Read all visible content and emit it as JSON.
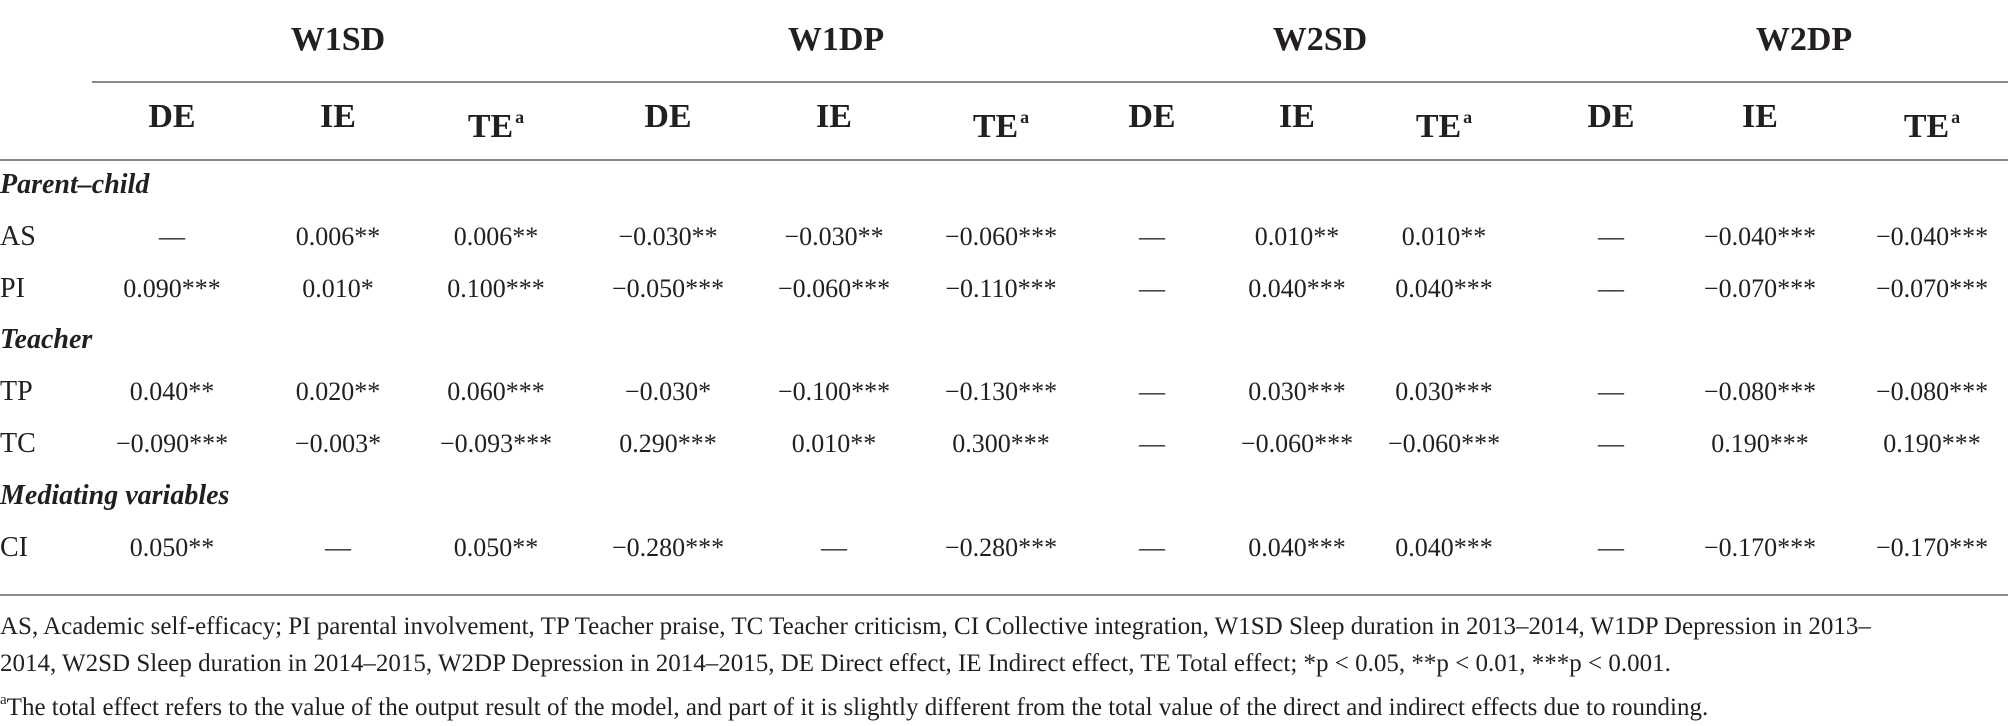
{
  "groups": [
    "W1SD",
    "W1DP",
    "W2SD",
    "W2DP"
  ],
  "subheaders": [
    "DE",
    "IE",
    "TE",
    "DE",
    "IE",
    "TE",
    "DE",
    "IE",
    "TE",
    "DE",
    "IE",
    "TE"
  ],
  "total_effect_marker": "a",
  "sections": {
    "parent_child": "Parent–child",
    "teacher": "Teacher",
    "mediating": "Mediating variables"
  },
  "rows": [
    {
      "label": "AS",
      "values": [
        "––",
        "0.006**",
        "0.006**",
        "−0.030**",
        "−0.030**",
        "−0.060***",
        "––",
        "0.010**",
        "0.010**",
        "––",
        "−0.040***",
        "−0.040***"
      ]
    },
    {
      "label": "PI",
      "values": [
        "0.090***",
        "0.010*",
        "0.100***",
        "−0.050***",
        "−0.060***",
        "−0.110***",
        "––",
        "0.040***",
        "0.040***",
        "––",
        "−0.070***",
        "−0.070***"
      ]
    },
    {
      "label": "TP",
      "values": [
        "0.040**",
        "0.020**",
        "0.060***",
        "−0.030*",
        "−0.100***",
        "−0.130***",
        "––",
        "0.030***",
        "0.030***",
        "––",
        "−0.080***",
        "−0.080***"
      ]
    },
    {
      "label": "TC",
      "values": [
        "−0.090***",
        "−0.003*",
        "−0.093***",
        "0.290***",
        "0.010**",
        "0.300***",
        "––",
        "−0.060***",
        "−0.060***",
        "––",
        "0.190***",
        "0.190***"
      ]
    },
    {
      "label": "CI",
      "values": [
        "0.050**",
        "––",
        "0.050**",
        "−0.280***",
        "––",
        "−0.280***",
        "––",
        "0.040***",
        "0.040***",
        "––",
        "−0.170***",
        "−0.170***"
      ]
    }
  ],
  "notes": {
    "line1": "AS, Academic self-efficacy; PI parental involvement, TP Teacher praise, TC Teacher criticism, CI Collective integration, W1SD Sleep duration in 2013–2014, W1DP Depression in 2013–",
    "line2": "2014, W2SD Sleep duration in 2014–2015, W2DP Depression in 2014–2015, DE Direct effect, IE Indirect effect, TE Total effect; *p < 0.05, **p < 0.01, ***p < 0.001.",
    "footnote_marker": "a",
    "footnote": "The total effect refers to the value of the output result of the model, and part of it is slightly different from the total value of the direct and indirect effects due to rounding."
  }
}
